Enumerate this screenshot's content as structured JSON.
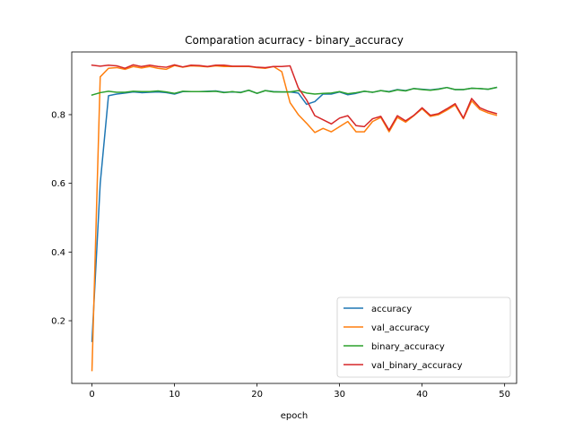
{
  "chart_data": {
    "type": "line",
    "title": "Comparation acurracy - binary_accuracy",
    "xlabel": "epoch",
    "ylabel": "",
    "xlim": [
      -2.45,
      51.45
    ],
    "ylim": [
      0.0175,
      0.9825
    ],
    "xticks": [
      0,
      10,
      20,
      30,
      40,
      50
    ],
    "yticks": [
      0.2,
      0.4,
      0.6,
      0.8
    ],
    "legend_position": "lower-right",
    "x": [
      0,
      1,
      2,
      3,
      4,
      5,
      6,
      7,
      8,
      9,
      10,
      11,
      12,
      13,
      14,
      15,
      16,
      17,
      18,
      19,
      20,
      21,
      22,
      23,
      24,
      25,
      26,
      27,
      28,
      29,
      30,
      31,
      32,
      33,
      34,
      35,
      36,
      37,
      38,
      39,
      40,
      41,
      42,
      43,
      44,
      45,
      46,
      47,
      48,
      49
    ],
    "series": [
      {
        "name": "accuracy",
        "color": "#1f77b4",
        "values": [
          0.14,
          0.6,
          0.855,
          0.86,
          0.863,
          0.866,
          0.864,
          0.865,
          0.866,
          0.864,
          0.86,
          0.867,
          0.867,
          0.867,
          0.868,
          0.869,
          0.865,
          0.866,
          0.865,
          0.871,
          0.862,
          0.87,
          0.867,
          0.866,
          0.866,
          0.863,
          0.83,
          0.838,
          0.86,
          0.86,
          0.866,
          0.858,
          0.862,
          0.868,
          0.865,
          0.87,
          0.867,
          0.873,
          0.87,
          0.876,
          0.874,
          0.872,
          0.875,
          0.879,
          0.873,
          0.873,
          0.877,
          0.876,
          0.874,
          0.879
        ]
      },
      {
        "name": "val_accuracy",
        "color": "#ff7f0e",
        "values": [
          0.055,
          0.91,
          0.935,
          0.937,
          0.932,
          0.94,
          0.936,
          0.94,
          0.935,
          0.932,
          0.943,
          0.938,
          0.942,
          0.941,
          0.939,
          0.942,
          0.94,
          0.94,
          0.94,
          0.94,
          0.937,
          0.935,
          0.94,
          0.925,
          0.835,
          0.8,
          0.775,
          0.748,
          0.76,
          0.75,
          0.765,
          0.78,
          0.75,
          0.75,
          0.78,
          0.792,
          0.75,
          0.792,
          0.778,
          0.797,
          0.817,
          0.795,
          0.8,
          0.813,
          0.828,
          0.788,
          0.84,
          0.815,
          0.805,
          0.798
        ]
      },
      {
        "name": "binary_accuracy",
        "color": "#2ca02c",
        "values": [
          0.857,
          0.864,
          0.868,
          0.865,
          0.865,
          0.868,
          0.867,
          0.867,
          0.869,
          0.866,
          0.862,
          0.868,
          0.867,
          0.867,
          0.867,
          0.868,
          0.864,
          0.867,
          0.864,
          0.871,
          0.862,
          0.87,
          0.866,
          0.866,
          0.866,
          0.87,
          0.863,
          0.86,
          0.862,
          0.863,
          0.867,
          0.861,
          0.864,
          0.868,
          0.865,
          0.87,
          0.866,
          0.872,
          0.869,
          0.876,
          0.873,
          0.871,
          0.874,
          0.879,
          0.873,
          0.873,
          0.877,
          0.876,
          0.874,
          0.879
        ]
      },
      {
        "name": "val_binary_accuracy",
        "color": "#d62728",
        "values": [
          0.944,
          0.941,
          0.944,
          0.942,
          0.935,
          0.945,
          0.94,
          0.944,
          0.94,
          0.938,
          0.945,
          0.939,
          0.944,
          0.943,
          0.94,
          0.944,
          0.944,
          0.941,
          0.941,
          0.941,
          0.938,
          0.937,
          0.94,
          0.94,
          0.942,
          0.878,
          0.843,
          0.797,
          0.785,
          0.773,
          0.79,
          0.797,
          0.768,
          0.765,
          0.788,
          0.795,
          0.755,
          0.797,
          0.782,
          0.798,
          0.82,
          0.798,
          0.803,
          0.817,
          0.832,
          0.79,
          0.847,
          0.82,
          0.81,
          0.803
        ]
      }
    ]
  }
}
